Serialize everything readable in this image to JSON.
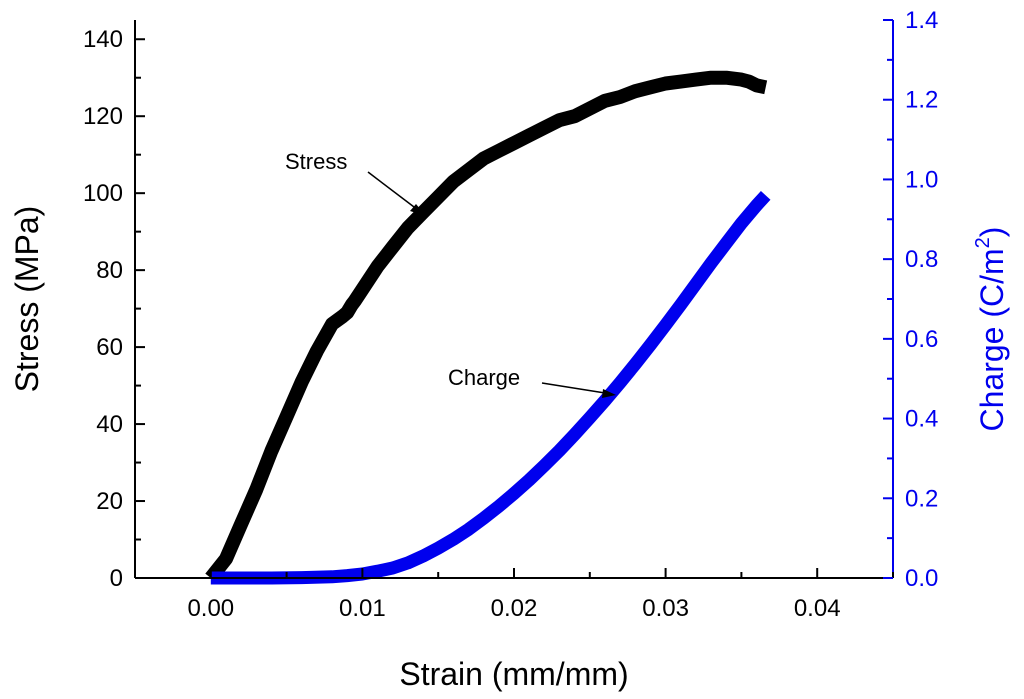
{
  "chart_data": {
    "type": "line",
    "title": "",
    "xlabel": "Strain (mm/mm)",
    "ylabel_left": "Stress (MPa)",
    "ylabel_right_prefix": "Charge (C/m",
    "ylabel_right_sup": "2",
    "ylabel_right_suffix": ")",
    "xlim": [
      -0.005,
      0.045
    ],
    "ylim_left": [
      0,
      145
    ],
    "ylim_right": [
      0,
      1.4
    ],
    "x_ticks": [
      "0.00",
      "0.01",
      "0.02",
      "0.03",
      "0.04"
    ],
    "y_left_ticks": [
      "0",
      "20",
      "40",
      "60",
      "80",
      "100",
      "120",
      "140"
    ],
    "y_right_ticks": [
      "0.0",
      "0.2",
      "0.4",
      "0.6",
      "0.8",
      "1.0",
      "1.2",
      "1.4"
    ],
    "colors": {
      "stress": "#000000",
      "charge": "#0000ee",
      "axis_left": "#000000",
      "axis_right": "#0000ee"
    },
    "series": [
      {
        "name": "Stress",
        "axis": "left",
        "x": [
          0.0,
          0.001,
          0.002,
          0.003,
          0.004,
          0.005,
          0.006,
          0.007,
          0.008,
          0.0087,
          0.009,
          0.0093,
          0.0095,
          0.01,
          0.011,
          0.012,
          0.013,
          0.014,
          0.015,
          0.016,
          0.017,
          0.018,
          0.019,
          0.02,
          0.021,
          0.022,
          0.023,
          0.024,
          0.025,
          0.026,
          0.027,
          0.028,
          0.029,
          0.03,
          0.031,
          0.032,
          0.033,
          0.034,
          0.035,
          0.0355,
          0.036,
          0.0366
        ],
        "y": [
          0,
          5,
          14,
          23,
          33,
          42,
          51,
          59,
          66,
          68,
          69,
          71,
          72,
          75,
          81,
          86,
          91,
          95,
          99,
          103,
          106,
          109,
          111,
          113,
          115,
          117,
          119,
          120,
          122,
          124,
          125,
          126.5,
          127.5,
          128.5,
          129,
          129.5,
          130,
          130,
          129.5,
          129,
          128,
          127.5
        ]
      },
      {
        "name": "Charge",
        "axis": "right",
        "x": [
          0.0,
          0.002,
          0.004,
          0.006,
          0.008,
          0.009,
          0.01,
          0.011,
          0.012,
          0.013,
          0.014,
          0.015,
          0.016,
          0.017,
          0.018,
          0.019,
          0.02,
          0.021,
          0.022,
          0.023,
          0.024,
          0.025,
          0.026,
          0.027,
          0.028,
          0.029,
          0.03,
          0.031,
          0.032,
          0.033,
          0.034,
          0.035,
          0.036,
          0.0366
        ],
        "y": [
          0,
          0,
          0,
          0.001,
          0.003,
          0.006,
          0.01,
          0.017,
          0.025,
          0.038,
          0.055,
          0.075,
          0.097,
          0.122,
          0.15,
          0.18,
          0.212,
          0.246,
          0.282,
          0.32,
          0.36,
          0.402,
          0.445,
          0.49,
          0.537,
          0.585,
          0.635,
          0.686,
          0.738,
          0.79,
          0.84,
          0.89,
          0.935,
          0.96
        ]
      }
    ],
    "annotations": [
      {
        "text": "Stress",
        "series": "Stress"
      },
      {
        "text": "Charge",
        "series": "Charge"
      }
    ]
  }
}
